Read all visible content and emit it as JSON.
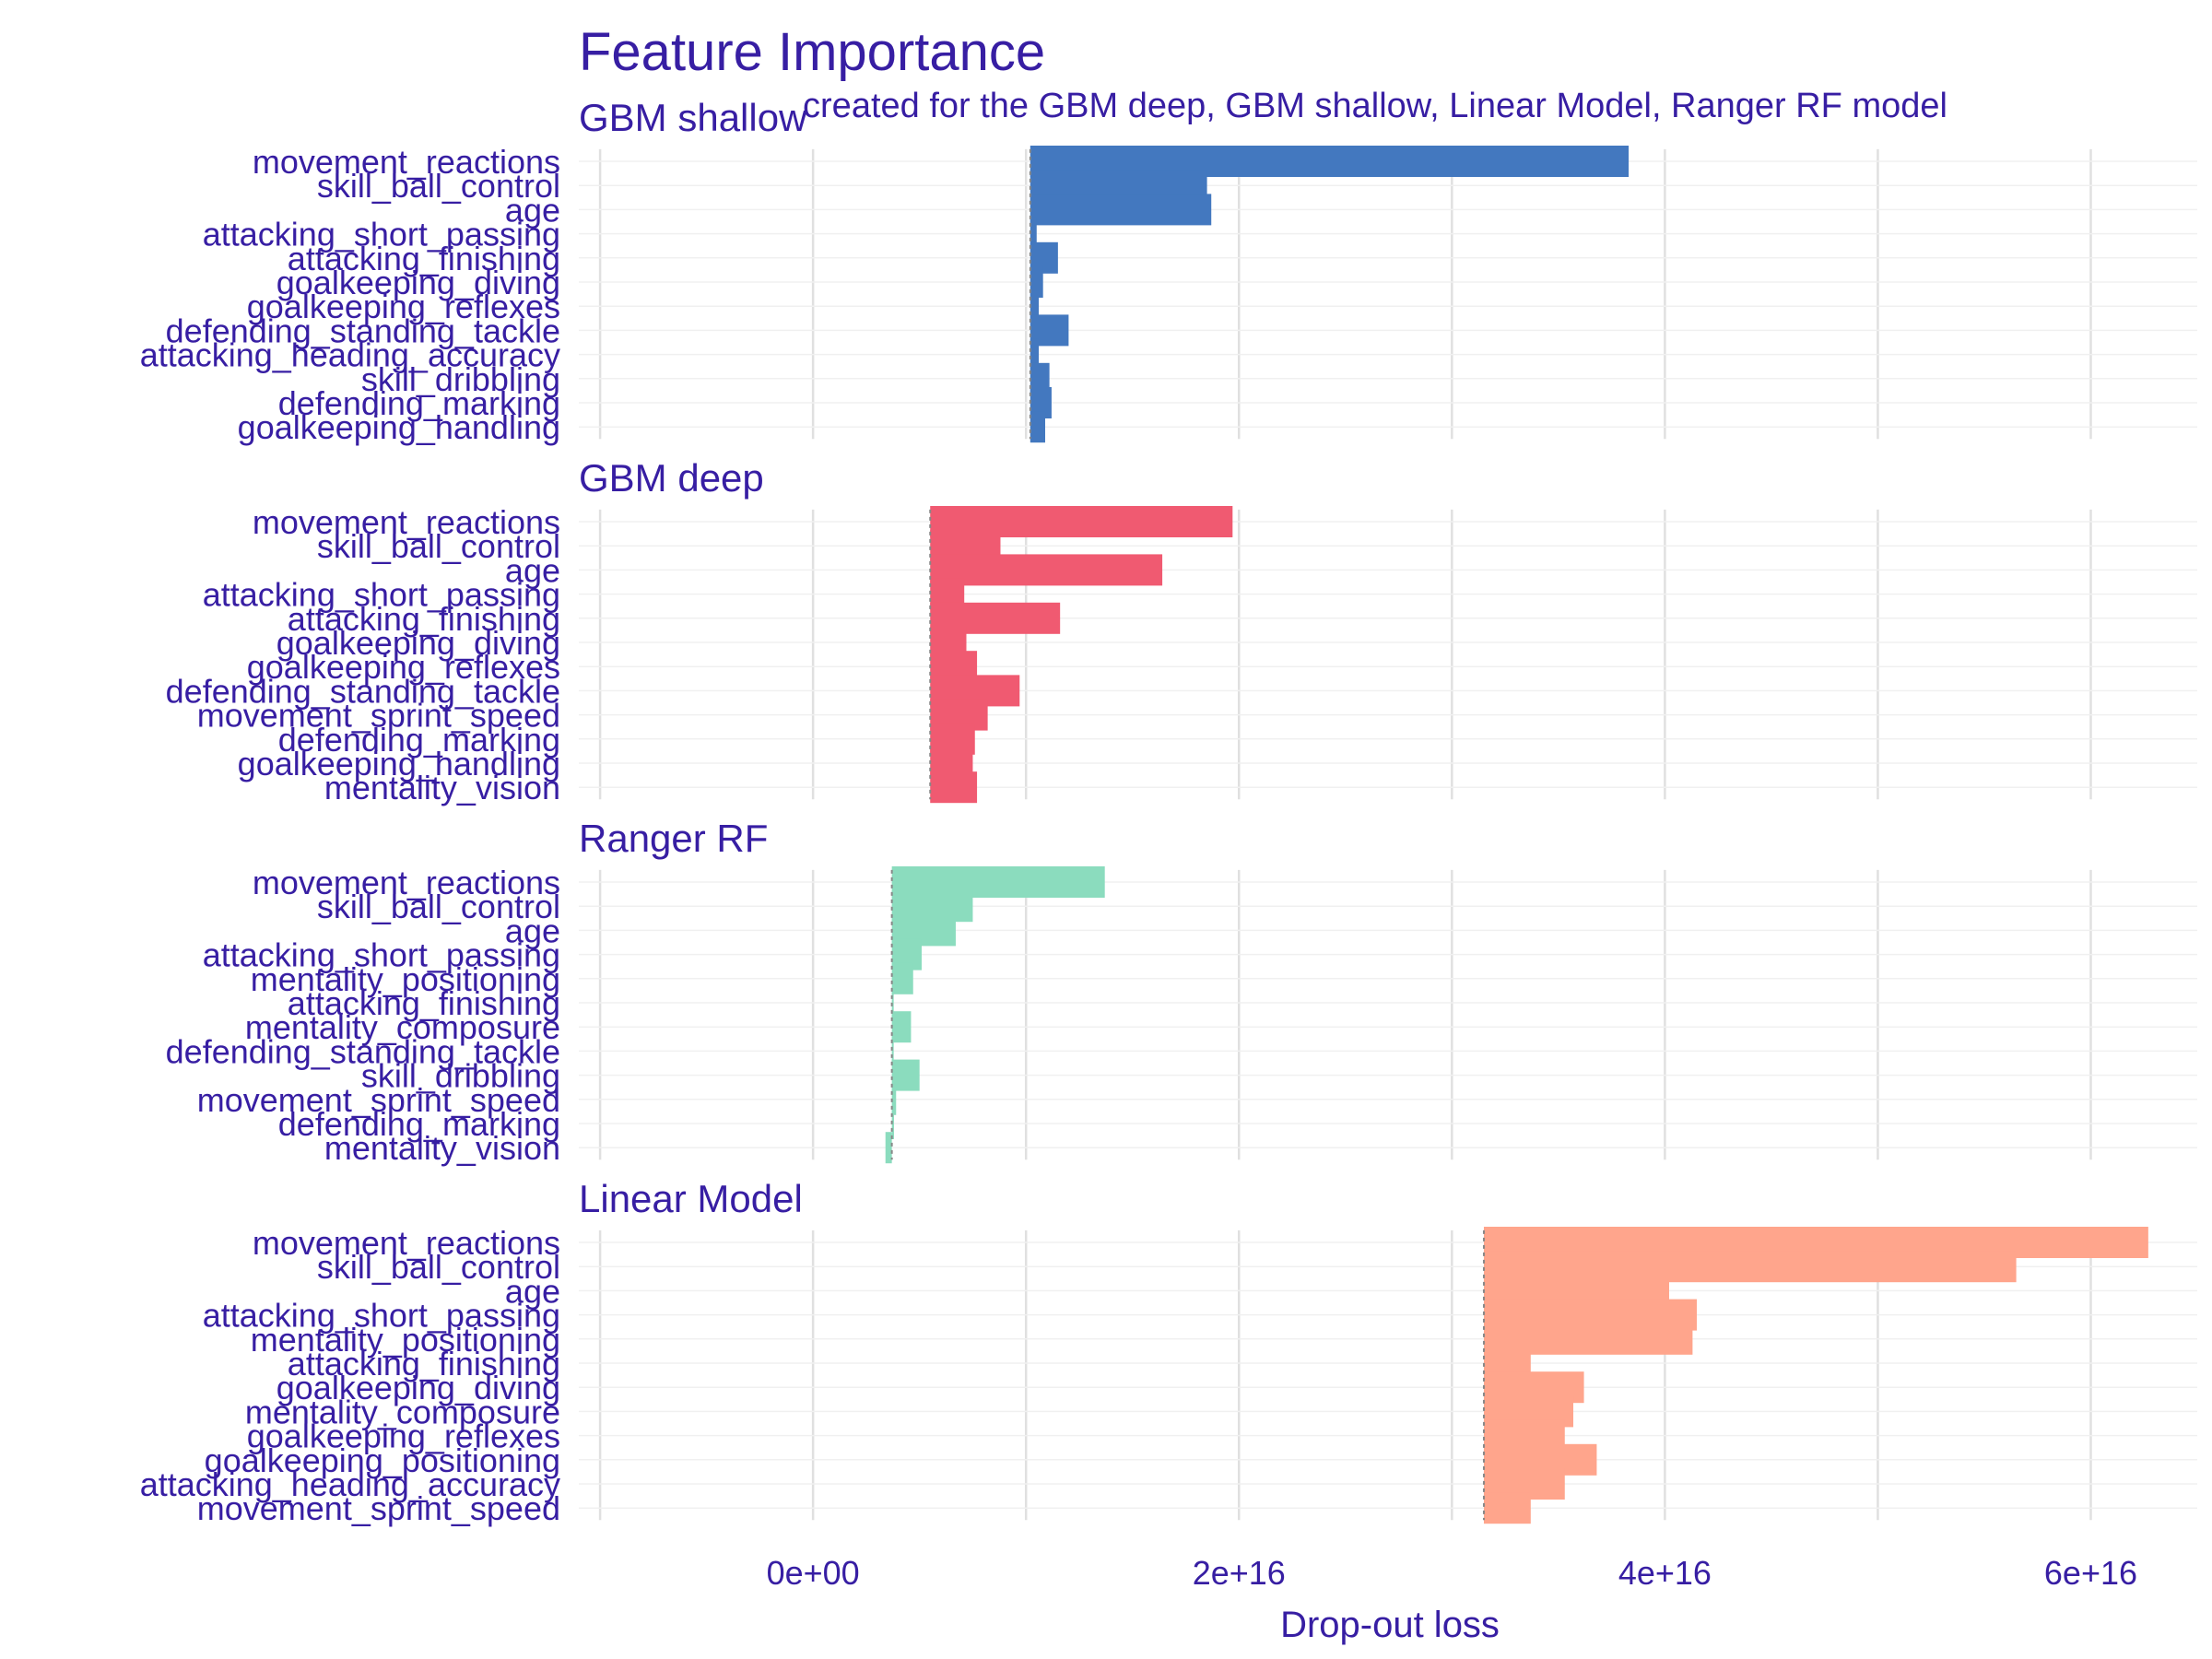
{
  "chart_data": {
    "type": "bar",
    "title": "Feature Importance",
    "subtitle": "created for the GBM deep, GBM shallow, Linear Model, Ranger RF model",
    "xlabel": "Drop-out loss",
    "xlim": [
      -1.1e+16,
      6.5e+16
    ],
    "x_ticks": [
      0,
      2e+16,
      4e+16,
      6e+16
    ],
    "x_tick_labels": [
      "0e+00",
      "2e+16",
      "4e+16",
      "6e+16"
    ],
    "grid": true,
    "panels": [
      {
        "name": "GBM shallow",
        "color": "#4378BF",
        "baseline": 1.02e+16,
        "variables": [
          "movement_reactions",
          "skill_ball_control",
          "age",
          "attacking_short_passing",
          "attacking_finishing",
          "goalkeeping_diving",
          "goalkeeping_reflexes",
          "defending_standing_tackle",
          "attacking_heading_accuracy",
          "skill_dribbling",
          "defending_marking",
          "goalkeeping_handling"
        ],
        "values": [
          3.83e+16,
          1.85e+16,
          1.87e+16,
          1.05e+16,
          1.15e+16,
          1.08e+16,
          1.06e+16,
          1.2e+16,
          1.06e+16,
          1.11e+16,
          1.12e+16,
          1.09e+16
        ]
      },
      {
        "name": "GBM deep",
        "color": "#F05A71",
        "baseline": 5500000000000000.0,
        "variables": [
          "movement_reactions",
          "skill_ball_control",
          "age",
          "attacking_short_passing",
          "attacking_finishing",
          "goalkeeping_diving",
          "goalkeeping_reflexes",
          "defending_standing_tackle",
          "movement_sprint_speed",
          "defending_marking",
          "goalkeeping_handling",
          "mentality_vision"
        ],
        "values": [
          1.97e+16,
          8800000000000000.0,
          1.64e+16,
          7100000000000000.0,
          1.16e+16,
          7200000000000000.0,
          7700000000000000.0,
          9700000000000000.0,
          8200000000000000.0,
          7600000000000000.0,
          7500000000000000.0,
          7700000000000000.0
        ]
      },
      {
        "name": "Ranger RF",
        "color": "#8BDCBE",
        "baseline": 3700000000000000.0,
        "variables": [
          "movement_reactions",
          "skill_ball_control",
          "age",
          "attacking_short_passing",
          "mentality_positioning",
          "attacking_finishing",
          "mentality_composure",
          "defending_standing_tackle",
          "skill_dribbling",
          "movement_sprint_speed",
          "defending_marking",
          "mentality_vision"
        ],
        "values": [
          1.37e+16,
          7500000000000000.0,
          6700000000000000.0,
          5100000000000000.0,
          4700000000000000.0,
          3700000000000000.0,
          4600000000000000.0,
          3700000000000000.0,
          5000000000000000.0,
          3900000000000000.0,
          3800000000000000.0,
          3400000000000000.0
        ]
      },
      {
        "name": "Linear Model",
        "color": "#FFA58C",
        "baseline": 3.15e+16,
        "variables": [
          "movement_reactions",
          "skill_ball_control",
          "age",
          "attacking_short_passing",
          "mentality_positioning",
          "attacking_finishing",
          "goalkeeping_diving",
          "mentality_composure",
          "goalkeeping_reflexes",
          "goalkeeping_positioning",
          "attacking_heading_accuracy",
          "movement_sprint_speed"
        ],
        "values": [
          6.27e+16,
          5.65e+16,
          4.02e+16,
          4.15e+16,
          4.13e+16,
          3.37e+16,
          3.62e+16,
          3.57e+16,
          3.53e+16,
          3.68e+16,
          3.53e+16,
          3.37e+16
        ]
      }
    ]
  }
}
